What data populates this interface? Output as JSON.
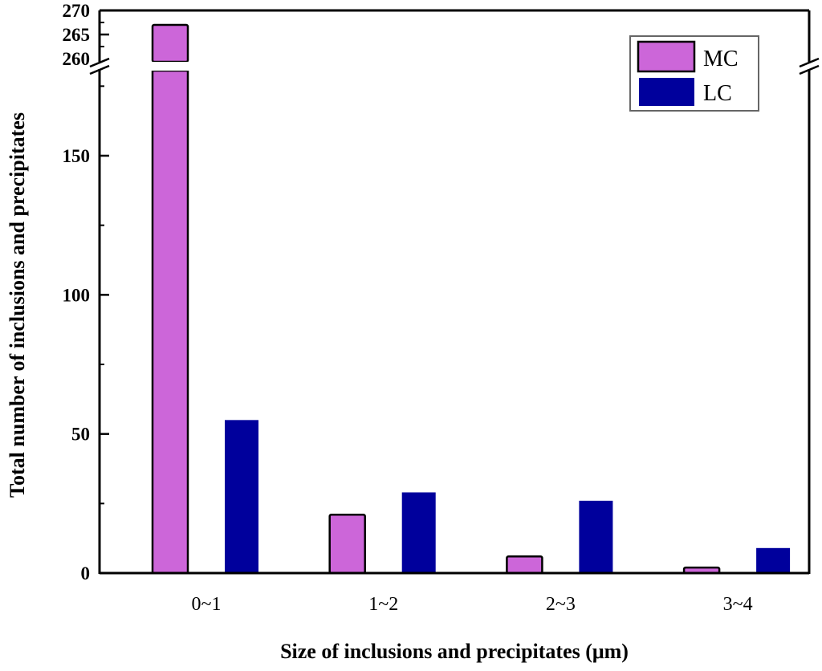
{
  "chart_data": {
    "type": "bar",
    "title": "",
    "xlabel": "Size of inclusions and precipitates (μm)",
    "ylabel": "Total number of inclusions and precipitates",
    "categories": [
      "0~1",
      "1~2",
      "2~3",
      "3~4"
    ],
    "series": [
      {
        "name": "MC",
        "color": "#CC66D9",
        "values": [
          267,
          21,
          6,
          2
        ]
      },
      {
        "name": "LC",
        "color": "#00009C",
        "values": [
          55,
          29,
          26,
          9
        ]
      }
    ],
    "y_axis_break": {
      "lower_range": [
        0,
        180
      ],
      "upper_range": [
        260,
        270
      ]
    },
    "yticks_lower": [
      "0",
      "50",
      "100",
      "150"
    ],
    "yticks_upper": [
      "260",
      "265",
      "270"
    ],
    "legend": {
      "position": "top-right",
      "entries": [
        "MC",
        "LC"
      ]
    },
    "grid": false
  }
}
